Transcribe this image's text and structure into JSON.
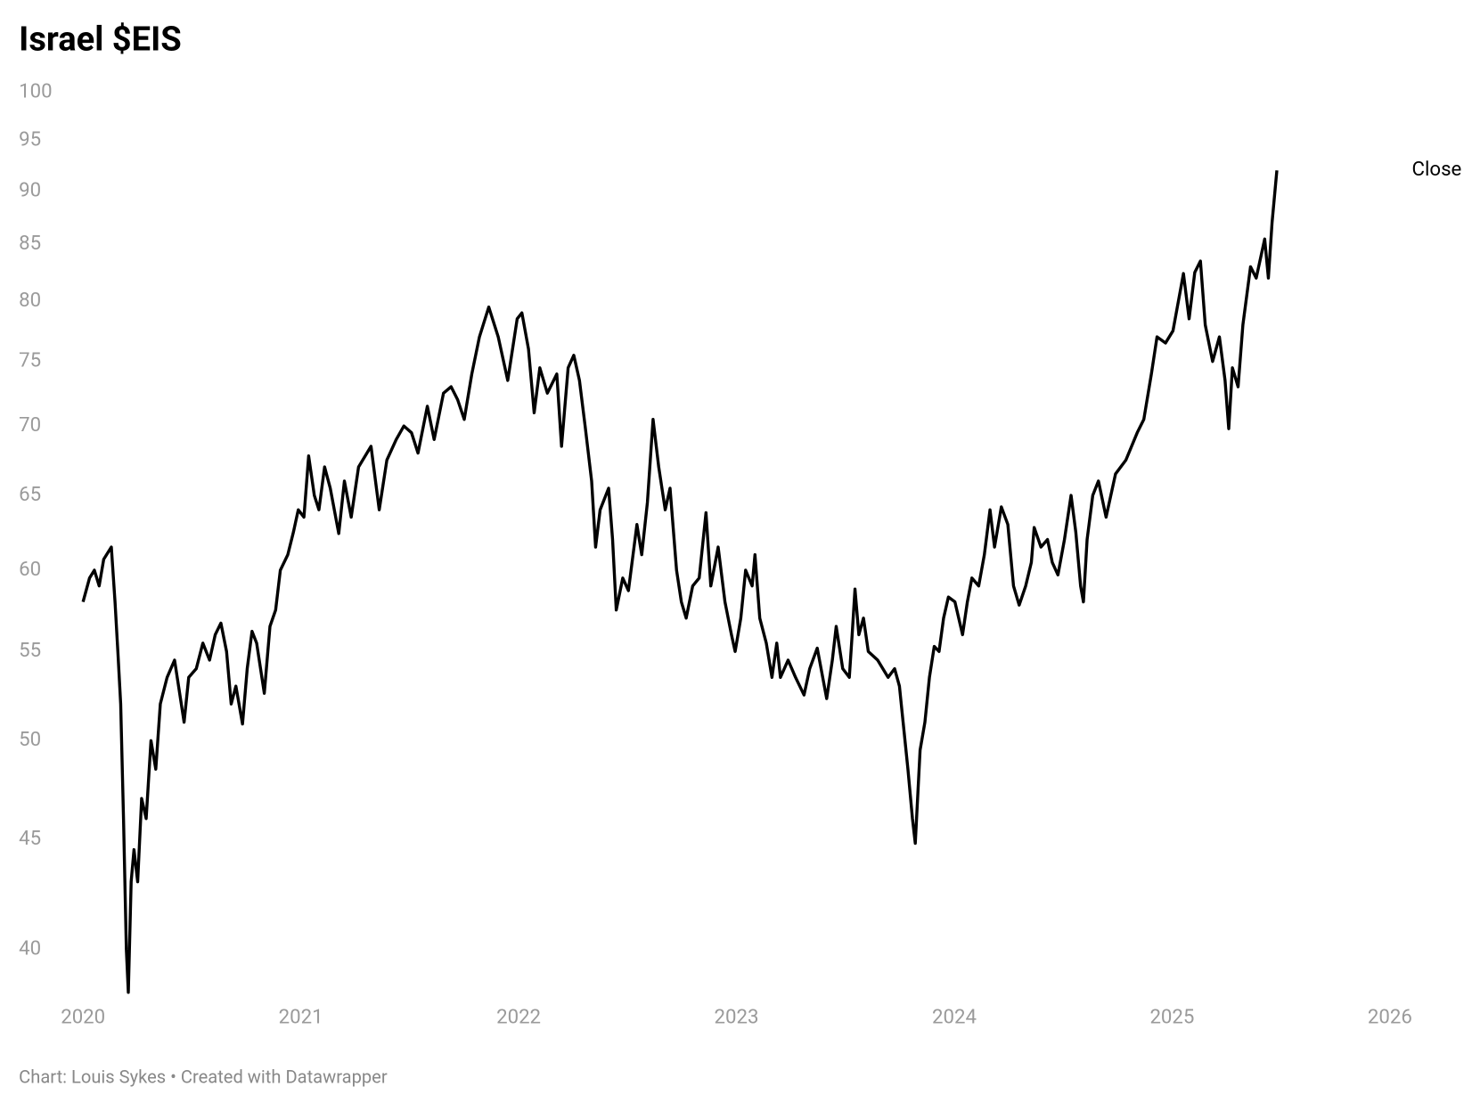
{
  "chart_data": {
    "type": "line",
    "title": "Israel $EIS",
    "footer": "Chart: Louis Sykes • Created with Datawrapper",
    "x": [
      2020.0,
      2020.03,
      2020.052,
      2020.074,
      2020.095,
      2020.13,
      2020.147,
      2020.16,
      2020.173,
      2020.186,
      2020.199,
      2020.208,
      2020.221,
      2020.234,
      2020.251,
      2020.269,
      2020.29,
      2020.312,
      2020.334,
      2020.355,
      2020.386,
      2020.42,
      2020.464,
      2020.485,
      2020.52,
      2020.55,
      2020.581,
      2020.607,
      2020.633,
      2020.659,
      2020.68,
      2020.702,
      2020.732,
      2020.754,
      2020.776,
      2020.797,
      2020.832,
      2020.858,
      2020.884,
      2020.906,
      2020.94,
      2020.966,
      2020.988,
      2021.014,
      2021.036,
      2021.062,
      2021.083,
      2021.109,
      2021.135,
      2021.174,
      2021.2,
      2021.231,
      2021.265,
      2021.322,
      2021.36,
      2021.395,
      2021.438,
      2021.473,
      2021.508,
      2021.538,
      2021.581,
      2021.612,
      2021.655,
      2021.69,
      2021.72,
      2021.75,
      2021.785,
      2021.82,
      2021.863,
      2021.906,
      2021.95,
      2021.993,
      2022.015,
      2022.045,
      2022.071,
      2022.097,
      2022.132,
      2022.175,
      2022.197,
      2022.227,
      2022.253,
      2022.279,
      2022.305,
      2022.335,
      2022.353,
      2022.374,
      2022.413,
      2022.431,
      2022.448,
      2022.478,
      2022.504,
      2022.543,
      2022.565,
      2022.591,
      2022.617,
      2022.643,
      2022.673,
      2022.695,
      2022.725,
      2022.747,
      2022.769,
      2022.799,
      2022.829,
      2022.86,
      2022.882,
      2022.916,
      2022.947,
      2022.977,
      2022.994,
      2023.02,
      2023.042,
      2023.072,
      2023.085,
      2023.107,
      2023.137,
      2023.163,
      2023.185,
      2023.202,
      2023.237,
      2023.271,
      2023.31,
      2023.336,
      2023.371,
      2023.414,
      2023.44,
      2023.458,
      2023.488,
      2023.518,
      2023.531,
      2023.544,
      2023.562,
      2023.583,
      2023.605,
      2023.648,
      2023.696,
      2023.726,
      2023.748,
      2023.765,
      2023.787,
      2023.808,
      2023.821,
      2023.843,
      2023.865,
      2023.886,
      2023.908,
      2023.93,
      2023.951,
      2023.973,
      2024.003,
      2024.038,
      2024.06,
      2024.081,
      2024.112,
      2024.138,
      2024.164,
      2024.185,
      2024.216,
      2024.246,
      2024.272,
      2024.298,
      2024.328,
      2024.354,
      2024.367,
      2024.398,
      2024.428,
      2024.45,
      2024.476,
      2024.506,
      2024.536,
      2024.558,
      2024.58,
      2024.593,
      2024.61,
      2024.636,
      2024.662,
      2024.697,
      2024.74,
      2024.788,
      2024.84,
      2024.87,
      2024.905,
      2024.931,
      2024.97,
      2025.004,
      2025.052,
      2025.078,
      2025.104,
      2025.13,
      2025.152,
      2025.186,
      2025.217,
      2025.243,
      2025.26,
      2025.277,
      2025.303,
      2025.325,
      2025.36,
      2025.386,
      2025.425,
      2025.442,
      2025.459,
      2025.481
    ],
    "series": [
      {
        "name": "Close",
        "color": "#000000",
        "values": [
          58,
          59.5,
          60,
          59,
          60.7,
          61.5,
          58,
          55,
          52,
          46,
          40,
          38.2,
          43,
          44.5,
          43,
          47,
          46,
          50,
          48.5,
          52,
          53.5,
          54.5,
          51,
          53.5,
          54,
          55.5,
          54.5,
          56,
          56.7,
          55,
          52,
          53,
          50.9,
          54,
          56.2,
          55.5,
          52.6,
          56.5,
          57.5,
          60,
          61,
          62.5,
          64,
          63.5,
          67.8,
          65,
          64,
          67,
          65.5,
          62.4,
          66,
          63.5,
          67,
          68.5,
          64,
          67.5,
          69,
          70,
          69.5,
          68,
          71.5,
          69,
          72.5,
          73,
          72,
          70.5,
          74,
          77,
          79.5,
          77,
          73.5,
          78.5,
          79,
          76,
          71,
          74.5,
          72.5,
          74,
          68.5,
          74.5,
          75.5,
          73.5,
          70,
          66,
          61.5,
          64,
          65.5,
          62,
          57.5,
          59.5,
          58.7,
          63,
          61,
          64.5,
          70.5,
          67,
          64,
          65.5,
          60,
          58,
          57,
          59,
          59.5,
          63.8,
          59,
          61.5,
          58,
          56,
          55,
          57,
          60,
          59,
          61,
          57,
          55.5,
          53.5,
          55.5,
          53.5,
          54.5,
          53.5,
          52.5,
          54,
          55.2,
          52.3,
          54.5,
          56.5,
          54,
          53.5,
          56,
          58.8,
          56,
          57,
          55,
          54.5,
          53.5,
          54,
          53,
          51,
          48.5,
          46,
          44.8,
          49.5,
          51,
          53.5,
          55.3,
          55,
          57,
          58.3,
          58,
          56,
          58,
          59.5,
          59,
          61,
          64,
          61.5,
          64.2,
          63,
          59,
          57.8,
          59,
          60.5,
          62.8,
          61.5,
          62,
          60.5,
          59.7,
          62,
          65,
          62.5,
          59,
          58,
          62,
          65,
          66,
          63.5,
          66.5,
          67.5,
          69.5,
          70.5,
          74,
          77,
          76.5,
          77.5,
          82.4,
          78.5,
          82.5,
          83.5,
          78,
          75,
          77,
          73.5,
          69.8,
          74.5,
          73,
          78,
          83,
          82,
          85.5,
          82,
          87,
          92
        ]
      }
    ],
    "xlim": [
      2020,
      2026
    ],
    "xticks": [
      2020,
      2021,
      2022,
      2023,
      2024,
      2025,
      2026
    ],
    "ylim": [
      38,
      100
    ],
    "yticks": [
      40,
      45,
      50,
      55,
      60,
      65,
      70,
      75,
      80,
      85,
      90,
      95,
      100
    ],
    "log_y": true,
    "grid": false
  }
}
